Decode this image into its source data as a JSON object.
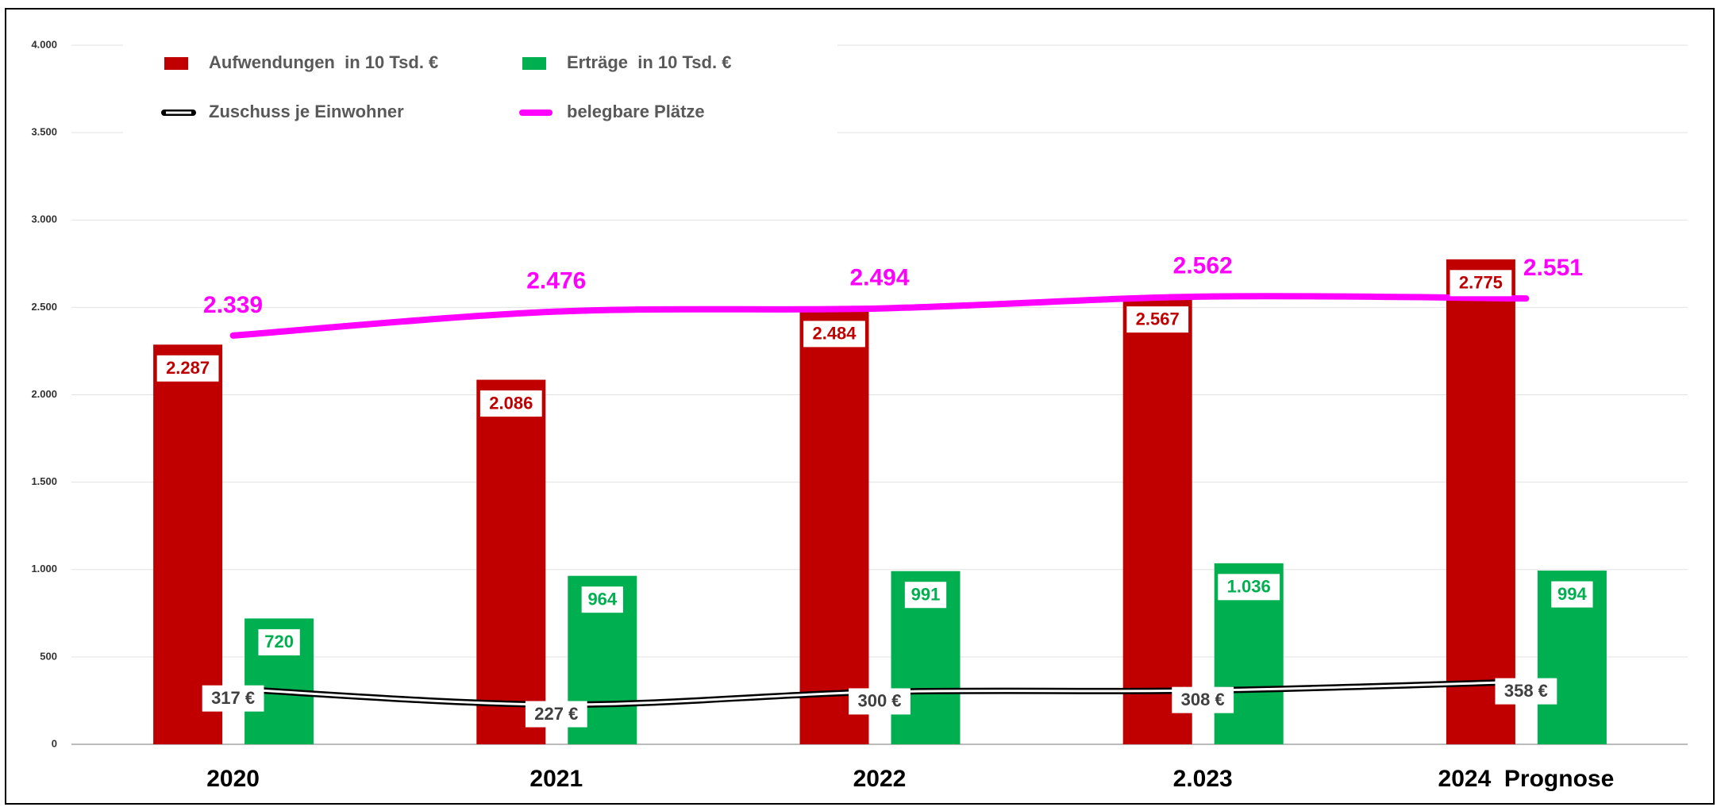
{
  "chart_data": {
    "type": "bar",
    "categories": [
      "2020",
      "2021",
      "2022",
      "2.023",
      "2024  Prognose"
    ],
    "series": [
      {
        "name": "Aufwendungen  in 10 Tsd. €",
        "kind": "bar",
        "color": "#c00000",
        "values": [
          2287,
          2086,
          2484,
          2567,
          2775
        ],
        "value_labels": [
          "2.287",
          "2.086",
          "2.484",
          "2.567",
          "2.775"
        ]
      },
      {
        "name": "Erträge  in 10 Tsd. €",
        "kind": "bar",
        "color": "#00b050",
        "values": [
          720,
          964,
          991,
          1036,
          994
        ],
        "value_labels": [
          "720",
          "964",
          "991",
          "1.036",
          "994"
        ]
      },
      {
        "name": "Zuschuss je Einwohner",
        "kind": "line",
        "style": "double",
        "color": "#000000",
        "values": [
          317,
          227,
          300,
          308,
          358
        ],
        "value_labels": [
          "317 €",
          "227 €",
          "300 €",
          "308 €",
          "358 €"
        ]
      },
      {
        "name": "belegbare Plätze",
        "kind": "line",
        "style": "solid",
        "color": "#ff00ff",
        "values": [
          2339,
          2476,
          2494,
          2562,
          2551
        ],
        "value_labels": [
          "2.339",
          "2.476",
          "2.494",
          "2.562",
          "2.551"
        ]
      }
    ],
    "ylim": [
      0,
      4000
    ],
    "yticks": [
      0,
      500,
      {
        "value": 1000,
        "label": "1.000"
      },
      {
        "value": 1500,
        "label": "1.500"
      },
      {
        "value": 2000,
        "label": "2.000"
      },
      {
        "value": 2500,
        "label": "2.500"
      },
      {
        "value": 3000,
        "label": "3.000"
      },
      {
        "value": 3500,
        "label": "3.500"
      },
      {
        "value": 4000,
        "label": "4.000"
      }
    ],
    "grid": true,
    "legend": "top-left"
  }
}
